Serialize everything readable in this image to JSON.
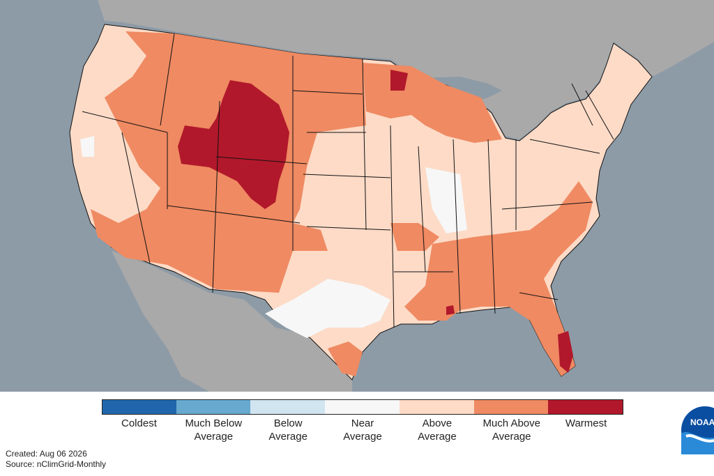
{
  "legend": {
    "items": [
      {
        "label": "Coldest",
        "color": "#2166ac"
      },
      {
        "label": "Much Below\nAverage",
        "color": "#67a9cf"
      },
      {
        "label": "Below\nAverage",
        "color": "#d1e5f0"
      },
      {
        "label": "Near\nAverage",
        "color": "#f7f7f7"
      },
      {
        "label": "Above\nAverage",
        "color": "#fddbc7"
      },
      {
        "label": "Much Above\nAverage",
        "color": "#ef8a62"
      },
      {
        "label": "Warmest",
        "color": "#b2182b"
      }
    ]
  },
  "footer": {
    "created": "Created: Aug 06 2026",
    "source": "Source: nClimGrid-Monthly"
  },
  "logo": {
    "text": "NOAA"
  },
  "map": {
    "land_color": "#a8a8a8",
    "water_color": "#8c9aa6",
    "regions_dominant": {
      "west_interior": "Much Above Average",
      "wyoming_utah_colorado_core": "Warmest",
      "south_florida": "Warmest",
      "texas_central": "Near Average",
      "midwest": "Above Average",
      "northeast": "Above Average"
    }
  }
}
